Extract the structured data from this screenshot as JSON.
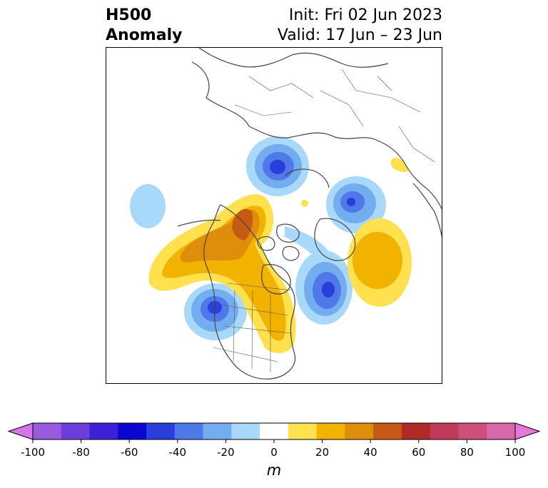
{
  "header": {
    "variable": "H500",
    "field": "Anomaly",
    "init": "Init: Fri 02 Jun 2023",
    "valid": "Valid: 17 Jun – 23 Jun"
  },
  "colorbar": {
    "ticks": [
      "-100",
      "-80",
      "-60",
      "-40",
      "-20",
      "0",
      "20",
      "40",
      "60",
      "80",
      "100"
    ],
    "units": "m",
    "colors": [
      "#d575e8",
      "#9a5ae0",
      "#6b3fdc",
      "#3f20d6",
      "#0b06d2",
      "#2a3edc",
      "#4f78e8",
      "#74acf0",
      "#a9d9fa",
      "#ffffff",
      "#ffe04f",
      "#f2b200",
      "#de8e0b",
      "#c65a15",
      "#b02a28",
      "#c23a5b",
      "#cc4f7c",
      "#d869a8",
      "#e878d8"
    ]
  },
  "colors": {
    "land_outline": "#444444",
    "frame": "#000000"
  }
}
